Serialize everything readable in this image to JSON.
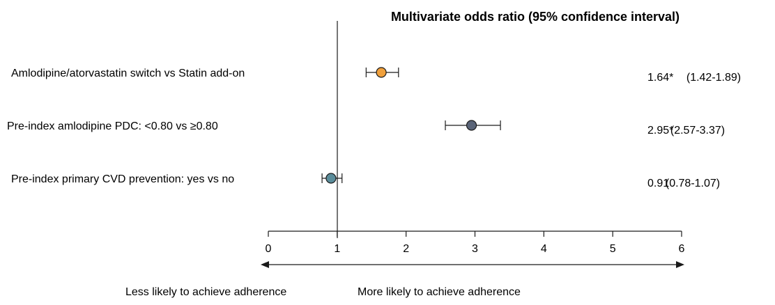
{
  "chart_data": {
    "type": "forest",
    "title": "Multivariate odds ratio (95% confidence interval)",
    "xlim": [
      0,
      6
    ],
    "xticks": [
      "0",
      "1",
      "2",
      "3",
      "4",
      "5",
      "6"
    ],
    "reference_line": 1,
    "rows": [
      {
        "label": "Amlodipine/atorvastatin switch  vs Statin add-on",
        "or": 1.64,
        "lower": 1.42,
        "upper": 1.89,
        "or_text": "1.64*",
        "ci_text": "(1.42-1.89)",
        "color": "#f0a03c"
      },
      {
        "label": "Pre-index amlodipine PDC: <0.80 vs ≥0.80",
        "or": 2.95,
        "lower": 2.57,
        "upper": 3.37,
        "or_text": "2.95*",
        "ci_text": "(2.57-3.37)",
        "color": "#5a6478"
      },
      {
        "label": "Pre-index primary CVD prevention: yes vs no",
        "or": 0.91,
        "lower": 0.78,
        "upper": 1.07,
        "or_text": "0.91",
        "ci_text": "(0.78-1.07)",
        "color": "#5a8c9a"
      }
    ],
    "direction_labels": {
      "left": "Less likely to achieve adherence",
      "right": "More likely to achieve adherence"
    }
  }
}
